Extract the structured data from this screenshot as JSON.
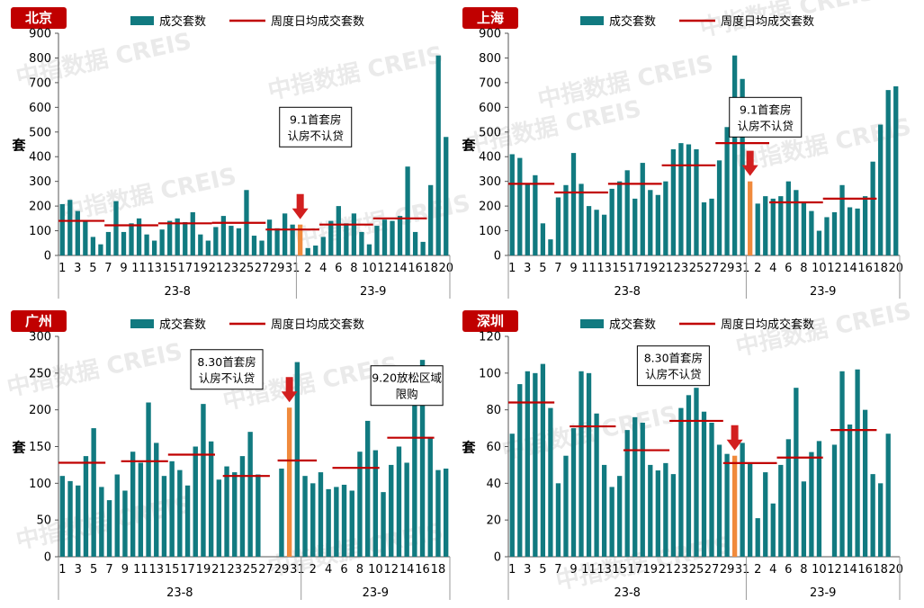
{
  "colors": {
    "bar": "#117a80",
    "highlight": "#f08a3c",
    "avg_line": "#c00000",
    "badge": "#c00000",
    "arrow": "#d21f1f",
    "axis": "#555555",
    "watermark": "#d9d9d9"
  },
  "watermark_text": "中指数据 CREIS",
  "chart_data": [
    {
      "type": "bar",
      "city": "北京",
      "legend": [
        "成交套数",
        "周度日均成交套数"
      ],
      "ylabel": "套",
      "ylim": [
        0,
        900
      ],
      "yticks": [
        0,
        100,
        200,
        300,
        400,
        500,
        600,
        700,
        800,
        900
      ],
      "days": [
        1,
        2,
        3,
        4,
        5,
        6,
        7,
        8,
        9,
        10,
        11,
        12,
        13,
        14,
        15,
        16,
        17,
        18,
        19,
        20,
        21,
        22,
        23,
        24,
        25,
        26,
        27,
        28,
        29,
        30,
        31,
        1,
        2,
        3,
        4,
        5,
        6,
        7,
        8,
        9,
        10,
        11,
        12,
        13,
        14,
        15,
        16,
        17,
        18,
        19,
        20
      ],
      "xtick_labels": [
        "1",
        "",
        "3",
        "",
        "5",
        "",
        "7",
        "",
        "9",
        "",
        "11",
        "",
        "13",
        "",
        "15",
        "",
        "17",
        "",
        "19",
        "",
        "21",
        "",
        "23",
        "",
        "25",
        "",
        "27",
        "",
        "29",
        "",
        "31",
        "",
        "2",
        "",
        "4",
        "",
        "6",
        "",
        "8",
        "",
        "10",
        "",
        "12",
        "",
        "14",
        "",
        "16",
        "",
        "18",
        "",
        "20"
      ],
      "values": [
        208,
        225,
        180,
        140,
        75,
        45,
        95,
        220,
        95,
        130,
        150,
        85,
        60,
        105,
        140,
        150,
        135,
        175,
        85,
        60,
        115,
        160,
        120,
        110,
        265,
        80,
        60,
        145,
        110,
        170,
        125,
        125,
        30,
        40,
        75,
        140,
        200,
        130,
        170,
        95,
        45,
        120,
        145,
        140,
        160,
        360,
        95,
        55,
        285,
        810,
        480
      ],
      "highlight_index": 31,
      "month_groups": [
        {
          "label": "23-8",
          "start": 0,
          "end": 30
        },
        {
          "label": "23-9",
          "start": 31,
          "end": 50
        }
      ],
      "weekly_avgs": [
        {
          "start": 0,
          "end": 5,
          "value": 140
        },
        {
          "start": 6,
          "end": 12,
          "value": 122
        },
        {
          "start": 13,
          "end": 19,
          "value": 130
        },
        {
          "start": 20,
          "end": 26,
          "value": 132
        },
        {
          "start": 27,
          "end": 33,
          "value": 105
        },
        {
          "start": 34,
          "end": 40,
          "value": 125
        },
        {
          "start": 41,
          "end": 47,
          "value": 150
        }
      ],
      "annotations": [
        {
          "lines": [
            "9.1首套房",
            "认房不认贷"
          ],
          "box_index": 33,
          "box_value": 520,
          "arrow_index": 31
        }
      ]
    },
    {
      "type": "bar",
      "city": "上海",
      "legend": [
        "成交套数",
        "周度日均成交套数"
      ],
      "ylabel": "套",
      "ylim": [
        0,
        900
      ],
      "yticks": [
        0,
        100,
        200,
        300,
        400,
        500,
        600,
        700,
        800,
        900
      ],
      "days": [
        1,
        2,
        3,
        4,
        5,
        6,
        7,
        8,
        9,
        10,
        11,
        12,
        13,
        14,
        15,
        16,
        17,
        18,
        19,
        20,
        21,
        22,
        23,
        24,
        25,
        26,
        27,
        28,
        29,
        30,
        31,
        1,
        2,
        3,
        4,
        5,
        6,
        7,
        8,
        9,
        10,
        11,
        12,
        13,
        14,
        15,
        16,
        17,
        18,
        19,
        20
      ],
      "xtick_labels": [
        "1",
        "",
        "3",
        "",
        "5",
        "",
        "7",
        "",
        "9",
        "",
        "11",
        "",
        "13",
        "",
        "15",
        "",
        "17",
        "",
        "19",
        "",
        "21",
        "",
        "23",
        "",
        "25",
        "",
        "27",
        "",
        "29",
        "",
        "31",
        "",
        "2",
        "",
        "4",
        "",
        "6",
        "",
        "8",
        "",
        "10",
        "",
        "12",
        "",
        "14",
        "",
        "16",
        "",
        "18",
        "",
        "20"
      ],
      "values": [
        410,
        395,
        290,
        325,
        130,
        65,
        235,
        285,
        415,
        290,
        200,
        185,
        165,
        270,
        300,
        345,
        230,
        375,
        265,
        245,
        300,
        430,
        455,
        450,
        430,
        215,
        230,
        385,
        520,
        810,
        715,
        300,
        210,
        240,
        230,
        240,
        300,
        265,
        215,
        180,
        100,
        155,
        175,
        285,
        195,
        190,
        240,
        380,
        530,
        670,
        685
      ],
      "highlight_index": 31,
      "month_groups": [
        {
          "label": "23-8",
          "start": 0,
          "end": 30
        },
        {
          "label": "23-9",
          "start": 31,
          "end": 50
        }
      ],
      "weekly_avgs": [
        {
          "start": 0,
          "end": 5,
          "value": 290
        },
        {
          "start": 6,
          "end": 12,
          "value": 255
        },
        {
          "start": 13,
          "end": 19,
          "value": 290
        },
        {
          "start": 20,
          "end": 26,
          "value": 365
        },
        {
          "start": 27,
          "end": 33,
          "value": 455
        },
        {
          "start": 34,
          "end": 40,
          "value": 215
        },
        {
          "start": 41,
          "end": 47,
          "value": 230
        }
      ],
      "annotations": [
        {
          "lines": [
            "9.1首套房",
            "认房不认贷"
          ],
          "box_index": 33,
          "box_value": 560,
          "arrow_index": 31
        }
      ]
    },
    {
      "type": "bar",
      "city": "广州",
      "legend": [
        "成交套数",
        "周度日均成交套数"
      ],
      "ylabel": "套",
      "ylim": [
        0,
        300
      ],
      "yticks": [
        0,
        50,
        100,
        150,
        200,
        250,
        300
      ],
      "days": [
        1,
        2,
        3,
        4,
        5,
        6,
        7,
        8,
        9,
        10,
        11,
        12,
        13,
        14,
        15,
        16,
        17,
        18,
        19,
        20,
        21,
        22,
        23,
        24,
        25,
        26,
        27,
        28,
        29,
        30,
        31,
        1,
        2,
        3,
        4,
        5,
        6,
        7,
        8,
        9,
        10,
        11,
        12,
        13,
        14,
        15,
        16,
        17,
        18,
        19
      ],
      "xtick_labels": [
        "1",
        "",
        "3",
        "",
        "5",
        "",
        "7",
        "",
        "9",
        "",
        "11",
        "",
        "13",
        "",
        "15",
        "",
        "17",
        "",
        "19",
        "",
        "21",
        "",
        "23",
        "",
        "25",
        "",
        "27",
        "",
        "29",
        "",
        "31",
        "",
        "2",
        "",
        "4",
        "",
        "6",
        "",
        "8",
        "",
        "10",
        "",
        "12",
        "",
        "14",
        "",
        "16",
        "",
        "18",
        ""
      ],
      "values": [
        110,
        103,
        97,
        137,
        175,
        95,
        77,
        112,
        90,
        143,
        128,
        210,
        155,
        110,
        130,
        118,
        97,
        150,
        208,
        157,
        105,
        123,
        115,
        137,
        170,
        112,
        0,
        0,
        120,
        203,
        265,
        110,
        100,
        115,
        92,
        95,
        98,
        90,
        143,
        185,
        145,
        88,
        125,
        150,
        128,
        215,
        268,
        163,
        118,
        120
      ],
      "highlight_index": 29,
      "month_groups": [
        {
          "label": "23-8",
          "start": 0,
          "end": 30
        },
        {
          "label": "23-9",
          "start": 31,
          "end": 49
        }
      ],
      "weekly_avgs": [
        {
          "start": 0,
          "end": 5,
          "value": 128
        },
        {
          "start": 8,
          "end": 13,
          "value": 130
        },
        {
          "start": 14,
          "end": 19,
          "value": 139
        },
        {
          "start": 21,
          "end": 26,
          "value": 110
        },
        {
          "start": 28,
          "end": 32,
          "value": 131
        },
        {
          "start": 35,
          "end": 40,
          "value": 121
        },
        {
          "start": 42,
          "end": 47,
          "value": 162
        }
      ],
      "annotations": [
        {
          "lines": [
            "8.30首套房",
            "认房不认贷"
          ],
          "box_index": 21,
          "box_value": 255,
          "arrow_index": 29
        },
        {
          "lines": [
            "9.20放松区域",
            "限购"
          ],
          "box_index": 44,
          "box_value": 233,
          "arrow_index": null
        }
      ]
    },
    {
      "type": "bar",
      "city": "深圳",
      "legend": [
        "成交套数",
        "周度日均成交套数"
      ],
      "ylabel": "套",
      "ylim": [
        0,
        120
      ],
      "yticks": [
        0,
        20,
        40,
        60,
        80,
        100,
        120
      ],
      "days": [
        1,
        2,
        3,
        4,
        5,
        6,
        7,
        8,
        9,
        10,
        11,
        12,
        13,
        14,
        15,
        16,
        17,
        18,
        19,
        20,
        21,
        22,
        23,
        24,
        25,
        26,
        27,
        28,
        29,
        30,
        31,
        1,
        2,
        3,
        4,
        5,
        6,
        7,
        8,
        9,
        10,
        11,
        12,
        13,
        14,
        15,
        16,
        17,
        18,
        19,
        20
      ],
      "xtick_labels": [
        "1",
        "",
        "3",
        "",
        "5",
        "",
        "7",
        "",
        "9",
        "",
        "11",
        "",
        "13",
        "",
        "15",
        "",
        "17",
        "",
        "19",
        "",
        "21",
        "",
        "23",
        "",
        "25",
        "",
        "27",
        "",
        "29",
        "",
        "31",
        "",
        "2",
        "",
        "4",
        "",
        "6",
        "",
        "8",
        "",
        "10",
        "",
        "12",
        "",
        "14",
        "",
        "16",
        "",
        "18",
        "",
        "20"
      ],
      "values": [
        67,
        94,
        101,
        100,
        105,
        81,
        40,
        55,
        70,
        101,
        100,
        78,
        50,
        38,
        44,
        69,
        76,
        73,
        50,
        47,
        51,
        45,
        81,
        88,
        92,
        79,
        73,
        61,
        56,
        55,
        62,
        51,
        21,
        46,
        29,
        50,
        64,
        92,
        41,
        57,
        63,
        0,
        61,
        101,
        72,
        102,
        80,
        45,
        40,
        67,
        0
      ],
      "highlight_index": 29,
      "month_groups": [
        {
          "label": "23-8",
          "start": 0,
          "end": 30
        },
        {
          "label": "23-9",
          "start": 31,
          "end": 50
        }
      ],
      "weekly_avgs": [
        {
          "start": 0,
          "end": 5,
          "value": 84
        },
        {
          "start": 8,
          "end": 13,
          "value": 71
        },
        {
          "start": 15,
          "end": 20,
          "value": 58
        },
        {
          "start": 21,
          "end": 27,
          "value": 74
        },
        {
          "start": 28,
          "end": 34,
          "value": 51
        },
        {
          "start": 35,
          "end": 40,
          "value": 54
        },
        {
          "start": 42,
          "end": 47,
          "value": 69
        }
      ],
      "annotations": [
        {
          "lines": [
            "8.30首套房",
            "认房不认贷"
          ],
          "box_index": 21,
          "box_value": 104,
          "arrow_index": 29
        }
      ]
    }
  ]
}
